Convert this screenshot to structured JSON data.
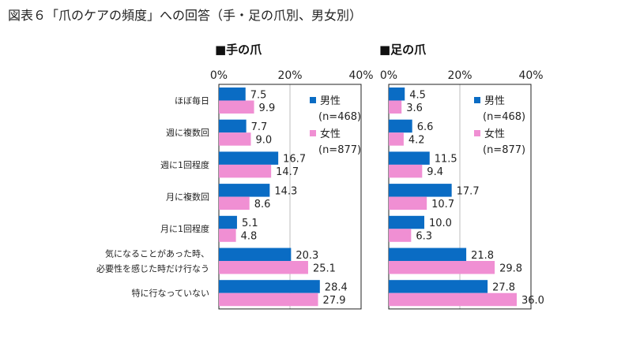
{
  "figure_title": "図表６「爪のケアの頻度」への回答（手・足の爪別、男女別）",
  "colors": {
    "male": "#0a6cc4",
    "female": "#f08fd3",
    "axis": "#222222",
    "grid": "#bdbdbd"
  },
  "chart_data": [
    {
      "type": "bar",
      "orientation": "horizontal",
      "title": "■手の爪",
      "categories": [
        "ほぼ毎日",
        "週に複数回",
        "週に1回程度",
        "月に複数回",
        "月に1回程度",
        "気になることがあった時、必要性を感じた時だけ行なう",
        "特に行なっていない"
      ],
      "category_lines": [
        [
          "ほぼ毎日"
        ],
        [
          "週に複数回"
        ],
        [
          "週に1回程度"
        ],
        [
          "月に複数回"
        ],
        [
          "月に1回程度"
        ],
        [
          "気になることがあった時、",
          "必要性を感じた時だけ行なう"
        ],
        [
          "特に行なっていない"
        ]
      ],
      "series": [
        {
          "name": "男性",
          "n": "(n=468)",
          "values": [
            7.5,
            7.7,
            16.7,
            14.3,
            5.1,
            20.3,
            28.4
          ]
        },
        {
          "name": "女性",
          "n": "(n=877)",
          "values": [
            9.9,
            9.0,
            14.7,
            8.6,
            4.8,
            25.1,
            27.9
          ]
        }
      ],
      "xlim": [
        0,
        40
      ],
      "xticks": [
        "0%",
        "20%",
        "40%"
      ],
      "grid": true,
      "legend": "top-right"
    },
    {
      "type": "bar",
      "orientation": "horizontal",
      "title": "■足の爪",
      "categories": [
        "ほぼ毎日",
        "週に複数回",
        "週に1回程度",
        "月に複数回",
        "月に1回程度",
        "気になることがあった時、必要性を感じた時だけ行なう",
        "特に行なっていない"
      ],
      "series": [
        {
          "name": "男性",
          "n": "(n=468)",
          "values": [
            4.5,
            6.6,
            11.5,
            17.7,
            10.0,
            21.8,
            27.8
          ]
        },
        {
          "name": "女性",
          "n": "(n=877)",
          "values": [
            3.6,
            4.2,
            9.4,
            10.7,
            6.3,
            29.8,
            36.0
          ]
        }
      ],
      "xlim": [
        0,
        40
      ],
      "xticks": [
        "0%",
        "20%",
        "40%"
      ],
      "grid": true,
      "legend": "top-right"
    }
  ]
}
